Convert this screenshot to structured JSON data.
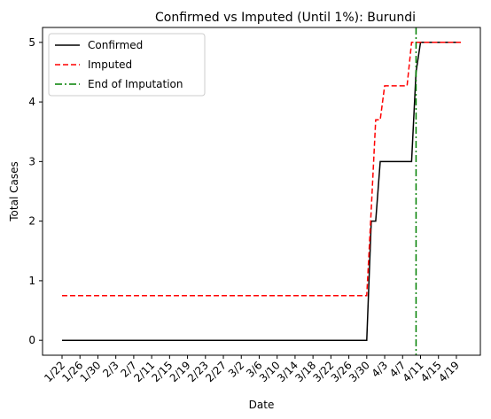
{
  "chart_data": {
    "type": "line",
    "title": "Confirmed vs Imputed (Until 1%): Burundi",
    "xlabel": "Date",
    "ylabel": "Total Cases",
    "ylim": [
      -0.25,
      5.25
    ],
    "yticks": [
      0,
      1,
      2,
      3,
      4,
      5
    ],
    "xtick_labels": [
      "1/22",
      "1/26",
      "1/30",
      "2/3",
      "2/7",
      "2/11",
      "2/15",
      "2/19",
      "2/23",
      "2/27",
      "3/2",
      "3/6",
      "3/10",
      "3/14",
      "3/18",
      "3/22",
      "3/26",
      "3/30",
      "4/3",
      "4/7",
      "4/11",
      "4/15",
      "4/19"
    ],
    "grid": false,
    "legend_position": "upper left",
    "series": [
      {
        "name": "Confirmed",
        "style": "solid",
        "color": "#000000",
        "points": [
          [
            "1/22",
            0
          ],
          [
            "3/30",
            0
          ],
          [
            "3/31",
            2
          ],
          [
            "4/1",
            2
          ],
          [
            "4/2",
            3
          ],
          [
            "4/9",
            3
          ],
          [
            "4/10",
            4.5
          ],
          [
            "4/11",
            5
          ],
          [
            "4/20",
            5
          ]
        ]
      },
      {
        "name": "Imputed",
        "style": "dashed",
        "color": "#ff0000",
        "points": [
          [
            "1/22",
            0.75
          ],
          [
            "3/30",
            0.75
          ],
          [
            "3/31",
            2.2
          ],
          [
            "4/1",
            3.7
          ],
          [
            "4/2",
            3.7
          ],
          [
            "4/3",
            4.27
          ],
          [
            "4/8",
            4.27
          ],
          [
            "4/9",
            5
          ],
          [
            "4/20",
            5
          ]
        ]
      }
    ],
    "vline": {
      "name": "End of Imputation",
      "x": "4/10",
      "style": "dashdot",
      "color": "#008000"
    }
  }
}
